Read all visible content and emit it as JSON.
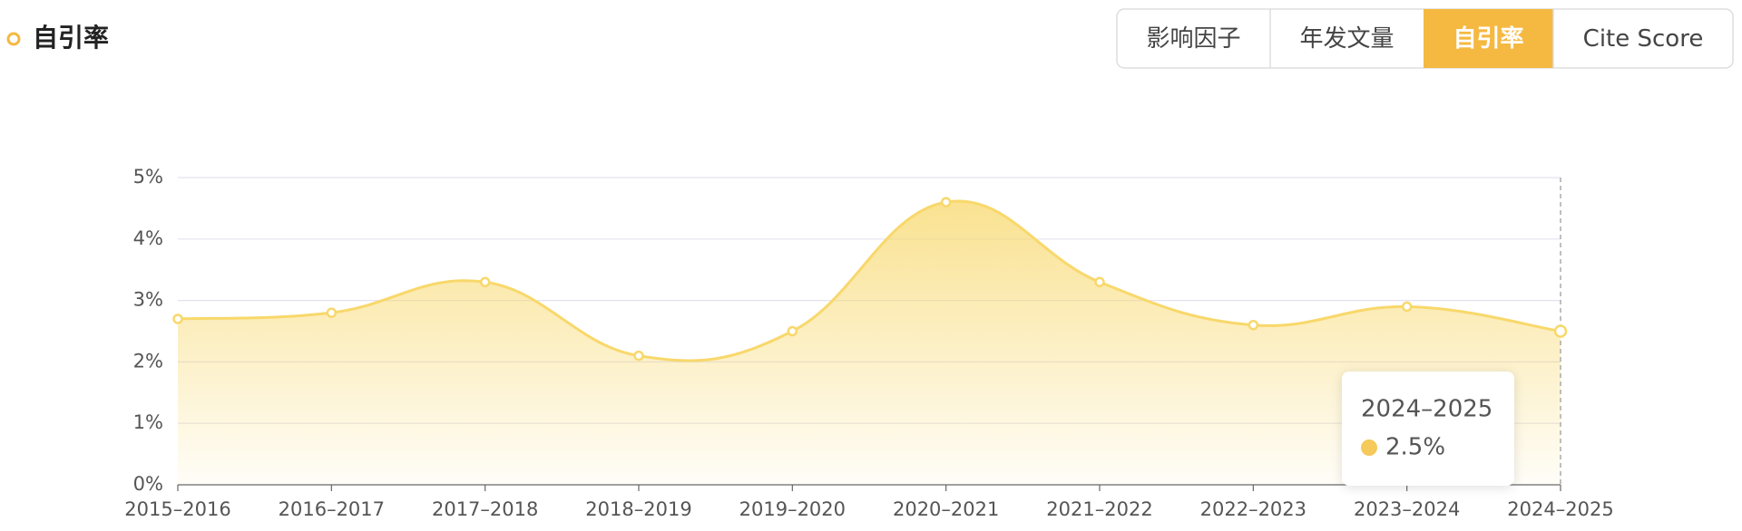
{
  "header": {
    "title": "自引率",
    "tabs": [
      "影响因子",
      "年发文量",
      "自引率",
      "Cite Score"
    ],
    "active_tab": 2
  },
  "chart_data": {
    "type": "area",
    "categories": [
      "2015–2016",
      "2016–2017",
      "2017–2018",
      "2018–2019",
      "2019–2020",
      "2020–2021",
      "2021–2022",
      "2022–2023",
      "2023–2024",
      "2024–2025"
    ],
    "values": [
      2.7,
      2.8,
      3.3,
      2.1,
      2.5,
      4.6,
      3.3,
      2.6,
      2.9,
      2.5
    ],
    "color": "#f8d86b",
    "ylim": [
      0,
      5
    ],
    "yticks": [
      {
        "value": 0,
        "label": "0%"
      },
      {
        "value": 1,
        "label": "1%"
      },
      {
        "value": 2,
        "label": "2%"
      },
      {
        "value": 3,
        "label": "3%"
      },
      {
        "value": 4,
        "label": "4%"
      },
      {
        "value": 5,
        "label": "5%"
      }
    ],
    "grid": true,
    "tooltip": {
      "category": "2024–2025",
      "value_label": "2.5%"
    }
  }
}
